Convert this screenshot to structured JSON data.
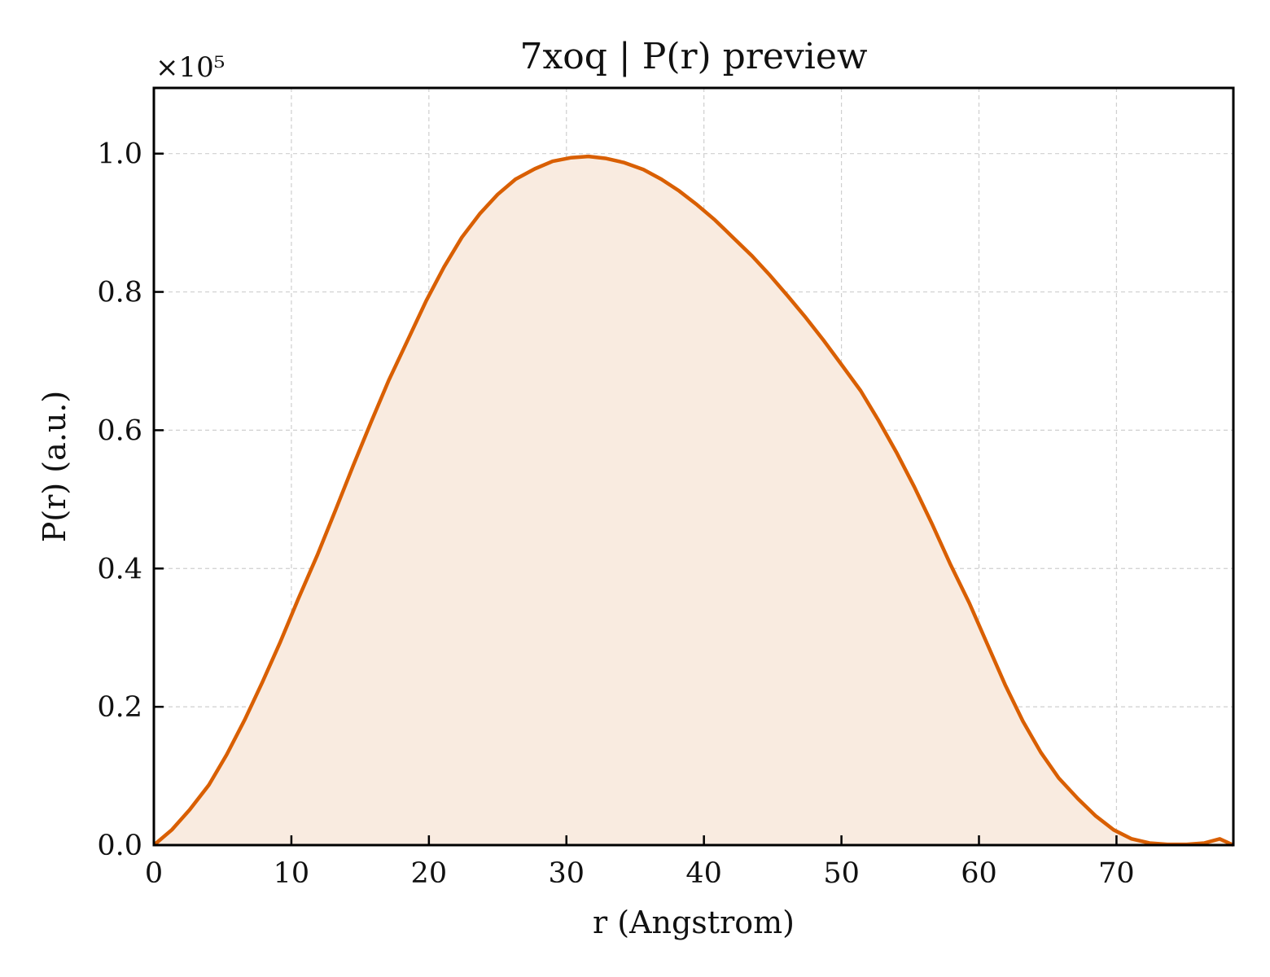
{
  "chart_data": {
    "type": "area",
    "title": "7xoq | P(r) preview",
    "xlabel": "r (Angstrom)",
    "ylabel": "P(r) (a.u.)",
    "y_multiplier": "×10⁵",
    "xlim": [
      0,
      78.5
    ],
    "ylim": [
      0,
      1.095
    ],
    "xticks": [
      0,
      10,
      20,
      30,
      40,
      50,
      60,
      70
    ],
    "yticks": [
      0.0,
      0.2,
      0.4,
      0.6,
      0.8,
      1.0
    ],
    "xtick_labels": [
      "0",
      "10",
      "20",
      "30",
      "40",
      "50",
      "60",
      "70"
    ],
    "ytick_labels": [
      "0.0",
      "0.2",
      "0.4",
      "0.6",
      "0.8",
      "1.0"
    ],
    "grid": true,
    "colors": {
      "line": "#d95f02",
      "fill": "#f9ebe0"
    },
    "x": [
      0,
      1.3,
      2.6,
      4.0,
      5.3,
      6.6,
      7.9,
      9.2,
      10.5,
      11.9,
      13.2,
      14.5,
      15.8,
      17.1,
      18.5,
      19.8,
      21.1,
      22.4,
      23.7,
      25.0,
      26.3,
      27.7,
      29.0,
      30.3,
      31.6,
      32.9,
      34.2,
      35.6,
      36.9,
      38.2,
      39.5,
      40.8,
      42.1,
      43.5,
      44.8,
      46.1,
      47.4,
      48.7,
      50.0,
      51.4,
      52.7,
      54.0,
      55.3,
      56.6,
      57.9,
      59.3,
      60.6,
      61.9,
      63.2,
      64.5,
      65.8,
      67.2,
      68.5,
      69.8,
      71.1,
      72.4,
      73.7,
      75.1,
      76.4,
      77.5,
      78.5
    ],
    "y": [
      0.0,
      0.022,
      0.051,
      0.087,
      0.131,
      0.181,
      0.236,
      0.294,
      0.356,
      0.42,
      0.484,
      0.549,
      0.612,
      0.673,
      0.732,
      0.787,
      0.836,
      0.879,
      0.913,
      0.941,
      0.963,
      0.978,
      0.989,
      0.994,
      0.996,
      0.993,
      0.987,
      0.977,
      0.963,
      0.946,
      0.926,
      0.904,
      0.879,
      0.852,
      0.824,
      0.794,
      0.763,
      0.73,
      0.695,
      0.657,
      0.614,
      0.568,
      0.518,
      0.464,
      0.407,
      0.35,
      0.291,
      0.232,
      0.179,
      0.134,
      0.097,
      0.067,
      0.042,
      0.022,
      0.009,
      0.003,
      0.001,
      0.001,
      0.003,
      0.009,
      0.0
    ]
  }
}
